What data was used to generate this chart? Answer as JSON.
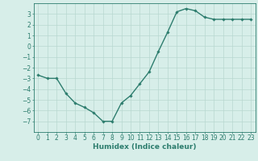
{
  "x": [
    0,
    1,
    2,
    3,
    4,
    5,
    6,
    7,
    8,
    9,
    10,
    11,
    12,
    13,
    14,
    15,
    16,
    17,
    18,
    19,
    20,
    21,
    22,
    23
  ],
  "y": [
    -2.7,
    -3.0,
    -3.0,
    -4.4,
    -5.3,
    -5.7,
    -6.2,
    -7.0,
    -7.0,
    -5.3,
    -4.6,
    -3.5,
    -2.4,
    -0.5,
    1.3,
    3.2,
    3.5,
    3.3,
    2.7,
    2.5,
    2.5,
    2.5,
    2.5,
    2.5
  ],
  "line_color": "#2d7d6e",
  "marker": "D",
  "marker_size": 1.8,
  "bg_color": "#d7eee9",
  "grid_color": "#b8d8d0",
  "axis_color": "#2d7d6e",
  "xlabel": "Humidex (Indice chaleur)",
  "ylim": [
    -8,
    4
  ],
  "xlim": [
    -0.5,
    23.5
  ],
  "yticks": [
    -7,
    -6,
    -5,
    -4,
    -3,
    -2,
    -1,
    0,
    1,
    2,
    3
  ],
  "xtick_labels": [
    "0",
    "1",
    "2",
    "3",
    "4",
    "5",
    "6",
    "7",
    "8",
    "9",
    "10",
    "11",
    "12",
    "13",
    "14",
    "15",
    "16",
    "17",
    "18",
    "19",
    "20",
    "21",
    "22",
    "23"
  ],
  "linewidth": 1.0,
  "xlabel_fontsize": 6.5,
  "tick_fontsize": 5.5
}
